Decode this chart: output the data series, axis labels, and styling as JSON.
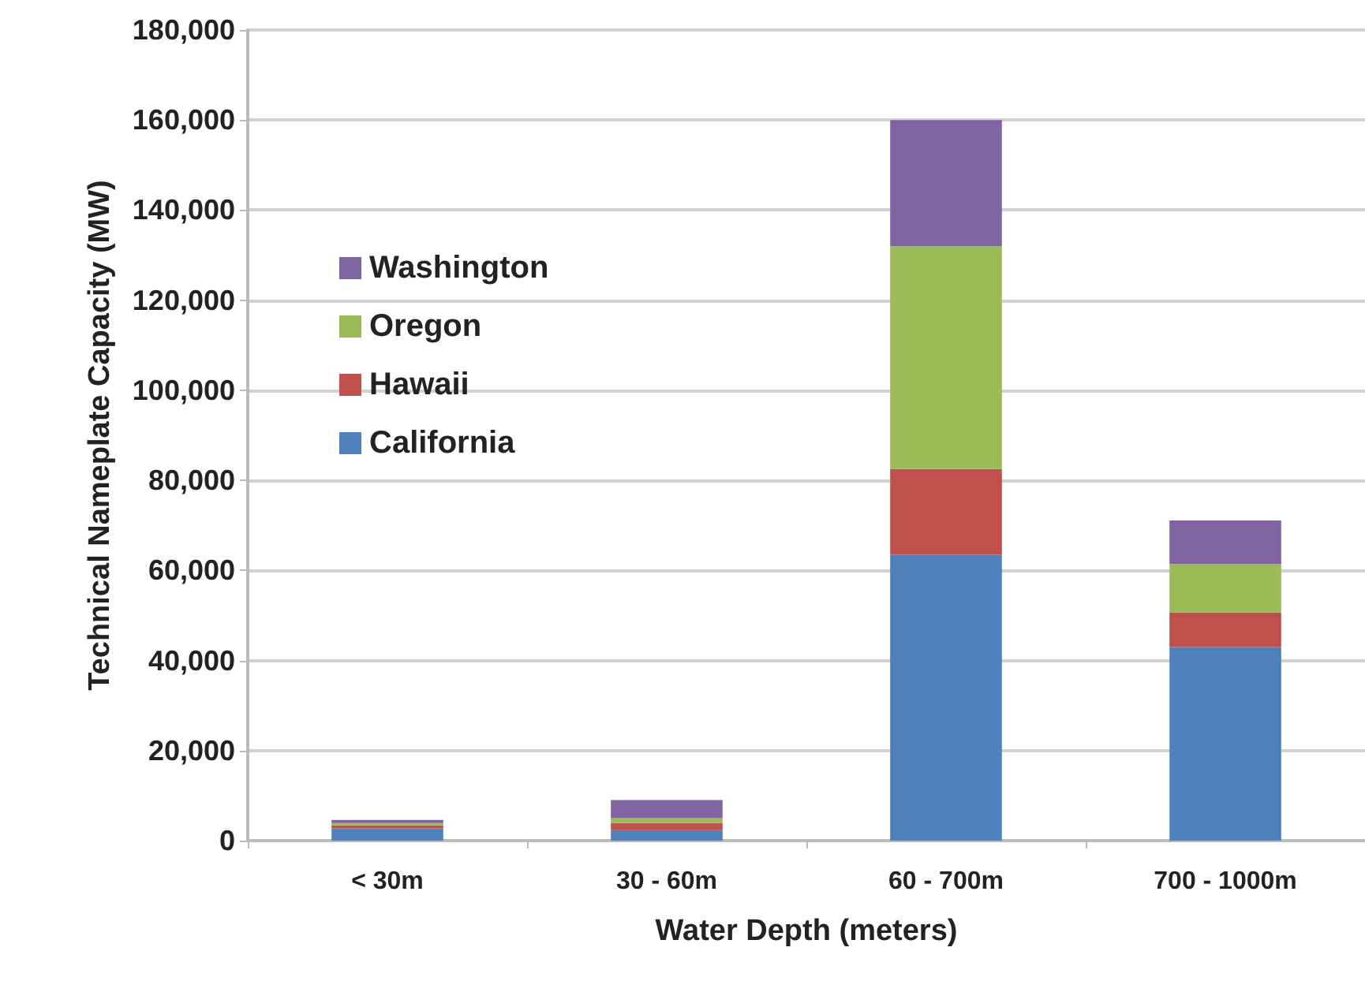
{
  "chart_data": {
    "type": "bar",
    "stacked": true,
    "xlabel": "Water Depth (meters)",
    "ylabel": "Technical Nameplate Capacity (MW)",
    "categories": [
      "< 30m",
      "30 - 60m",
      "60 - 700m",
      "700 - 1000m"
    ],
    "series": [
      {
        "name": "California",
        "color": "#4f81bd",
        "values": [
          2700,
          2300,
          63500,
          43000
        ]
      },
      {
        "name": "Hawaii",
        "color": "#c0504d",
        "values": [
          700,
          1600,
          19000,
          7700
        ]
      },
      {
        "name": "Oregon",
        "color": "#9bbb59",
        "values": [
          500,
          1100,
          49500,
          10700
        ]
      },
      {
        "name": "Washington",
        "color": "#8064a2",
        "values": [
          700,
          4000,
          28000,
          9700
        ]
      }
    ],
    "ylim": [
      0,
      180000
    ],
    "yticks": [
      0,
      {
        "value": 20000,
        "label": "20,000"
      },
      {
        "value": 40000,
        "label": "40,000"
      },
      {
        "value": 60000,
        "label": "60,000"
      },
      {
        "value": 80000,
        "label": "80,000"
      },
      {
        "value": 100000,
        "label": "100,000"
      },
      {
        "value": 120000,
        "label": "120,000"
      },
      {
        "value": 140000,
        "label": "140,000"
      },
      {
        "value": 160000,
        "label": "160,000"
      },
      {
        "value": 180000,
        "label": "180,000"
      }
    ],
    "grid": "y",
    "legend": "top left"
  }
}
